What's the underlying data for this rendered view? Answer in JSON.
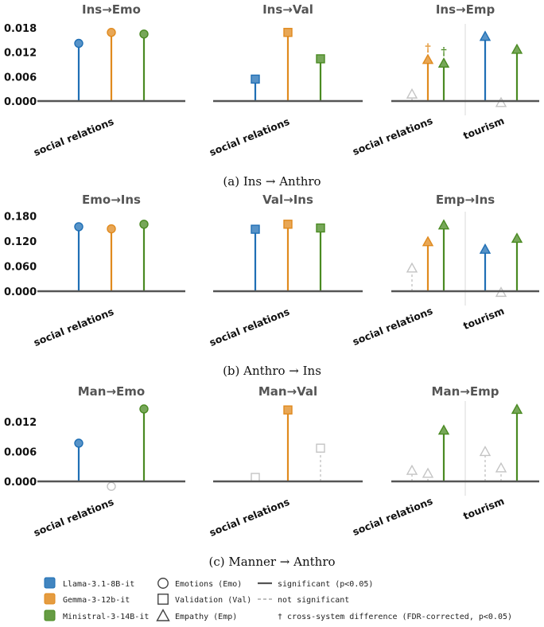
{
  "colors": {
    "llama": "#1f6fb5",
    "gemma": "#e08a1e",
    "ministral": "#4a8a22",
    "nonsig": "#c4c4c4",
    "axis": "#555555",
    "divider": "#d8d8d8"
  },
  "chart_data": [
    {
      "id": "ins_anthro",
      "type": "stem",
      "caption": "(a) Ins → Anthro",
      "ylim": [
        0,
        0.019
      ],
      "yticks": [
        "0.000",
        "0.006",
        "0.012",
        "0.018"
      ],
      "ytick_values": [
        0,
        0.006,
        0.012,
        0.018
      ],
      "panels": [
        {
          "title": "Ins→Emo",
          "marker": "circle",
          "groups": [
            "social relations"
          ],
          "stems": [
            {
              "group": 0,
              "model": "llama",
              "value": 0.0142,
              "significant": true
            },
            {
              "group": 0,
              "model": "gemma",
              "value": 0.0169,
              "significant": true
            },
            {
              "group": 0,
              "model": "ministral",
              "value": 0.0165,
              "significant": true
            }
          ]
        },
        {
          "title": "Ins→Val",
          "marker": "square",
          "groups": [
            "social relations"
          ],
          "stems": [
            {
              "group": 0,
              "model": "llama",
              "value": 0.0054,
              "significant": true
            },
            {
              "group": 0,
              "model": "gemma",
              "value": 0.0169,
              "significant": true
            },
            {
              "group": 0,
              "model": "ministral",
              "value": 0.0104,
              "significant": true
            }
          ]
        },
        {
          "title": "Ins→Emp",
          "marker": "triangle",
          "groups": [
            "social relations",
            "tourism"
          ],
          "stems": [
            {
              "group": 0,
              "model": "llama",
              "value": 0.0017,
              "significant": false
            },
            {
              "group": 0,
              "model": "gemma",
              "value": 0.0102,
              "significant": true,
              "dagger": true
            },
            {
              "group": 0,
              "model": "ministral",
              "value": 0.0093,
              "significant": true,
              "dagger": true
            },
            {
              "group": 1,
              "model": "llama",
              "value": 0.0159,
              "significant": true
            },
            {
              "group": 1,
              "model": "gemma",
              "value": -0.0004,
              "significant": false
            },
            {
              "group": 1,
              "model": "ministral",
              "value": 0.0127,
              "significant": true
            }
          ]
        }
      ]
    },
    {
      "id": "anthro_ins",
      "type": "stem",
      "caption": "(b) Anthro → Ins",
      "ylim": [
        0,
        0.19
      ],
      "yticks": [
        "0.000",
        "0.060",
        "0.120",
        "0.180"
      ],
      "ytick_values": [
        0,
        0.06,
        0.12,
        0.18
      ],
      "panels": [
        {
          "title": "Emo→Ins",
          "marker": "circle",
          "groups": [
            "social relations"
          ],
          "stems": [
            {
              "group": 0,
              "model": "llama",
              "value": 0.154,
              "significant": true
            },
            {
              "group": 0,
              "model": "gemma",
              "value": 0.149,
              "significant": true
            },
            {
              "group": 0,
              "model": "ministral",
              "value": 0.16,
              "significant": true
            }
          ]
        },
        {
          "title": "Val→Ins",
          "marker": "square",
          "groups": [
            "social relations"
          ],
          "stems": [
            {
              "group": 0,
              "model": "llama",
              "value": 0.148,
              "significant": true
            },
            {
              "group": 0,
              "model": "gemma",
              "value": 0.16,
              "significant": true
            },
            {
              "group": 0,
              "model": "ministral",
              "value": 0.151,
              "significant": true
            }
          ]
        },
        {
          "title": "Emp→Ins",
          "marker": "triangle",
          "groups": [
            "social relations",
            "tourism"
          ],
          "stems": [
            {
              "group": 0,
              "model": "llama",
              "value": 0.055,
              "significant": false
            },
            {
              "group": 0,
              "model": "gemma",
              "value": 0.118,
              "significant": true
            },
            {
              "group": 0,
              "model": "ministral",
              "value": 0.158,
              "significant": true
            },
            {
              "group": 1,
              "model": "llama",
              "value": 0.1,
              "significant": true
            },
            {
              "group": 1,
              "model": "gemma",
              "value": -0.003,
              "significant": false
            },
            {
              "group": 1,
              "model": "ministral",
              "value": 0.126,
              "significant": true
            }
          ]
        }
      ]
    },
    {
      "id": "manner_anthro",
      "type": "stem",
      "caption": "(c) Manner → Anthro",
      "ylim": [
        0,
        0.0162
      ],
      "yticks": [
        "0.000",
        "0.006",
        "0.012"
      ],
      "ytick_values": [
        0,
        0.006,
        0.012
      ],
      "panels": [
        {
          "title": "Man→Emo",
          "marker": "circle",
          "groups": [
            "social relations"
          ],
          "stems": [
            {
              "group": 0,
              "model": "llama",
              "value": 0.0077,
              "significant": true
            },
            {
              "group": 0,
              "model": "gemma",
              "value": -0.001,
              "significant": false
            },
            {
              "group": 0,
              "model": "ministral",
              "value": 0.0146,
              "significant": true
            }
          ]
        },
        {
          "title": "Man→Val",
          "marker": "square",
          "groups": [
            "social relations"
          ],
          "stems": [
            {
              "group": 0,
              "model": "llama",
              "value": 0.0008,
              "significant": false
            },
            {
              "group": 0,
              "model": "gemma",
              "value": 0.0144,
              "significant": true
            },
            {
              "group": 0,
              "model": "ministral",
              "value": 0.0067,
              "significant": false
            }
          ]
        },
        {
          "title": "Man→Emp",
          "marker": "triangle",
          "groups": [
            "social relations",
            "tourism"
          ],
          "stems": [
            {
              "group": 0,
              "model": "llama",
              "value": 0.0022,
              "significant": false
            },
            {
              "group": 0,
              "model": "gemma",
              "value": 0.0016,
              "significant": false
            },
            {
              "group": 0,
              "model": "ministral",
              "value": 0.0103,
              "significant": true
            },
            {
              "group": 1,
              "model": "llama",
              "value": 0.006,
              "significant": false
            },
            {
              "group": 1,
              "model": "gemma",
              "value": 0.0027,
              "significant": false
            },
            {
              "group": 1,
              "model": "ministral",
              "value": 0.0145,
              "significant": true
            }
          ]
        }
      ]
    }
  ],
  "legend": {
    "models": [
      {
        "key": "llama",
        "label": "Llama-3.1-8B-it"
      },
      {
        "key": "gemma",
        "label": "Gemma-3-12b-it"
      },
      {
        "key": "ministral",
        "label": "Ministral-3-14B-it"
      }
    ],
    "markers": [
      {
        "shape": "circle",
        "label": "Emotions (Emo)"
      },
      {
        "shape": "square",
        "label": "Validation (Val)"
      },
      {
        "shape": "triangle",
        "label": "Empathy (Emp)"
      }
    ],
    "lines": [
      {
        "style": "solid",
        "label": "significant (p<0.05)"
      },
      {
        "style": "dashed",
        "label": "not significant"
      }
    ],
    "dagger_symbol": "†",
    "dagger_note": "† cross-system difference (FDR-corrected, p<0.05)"
  }
}
